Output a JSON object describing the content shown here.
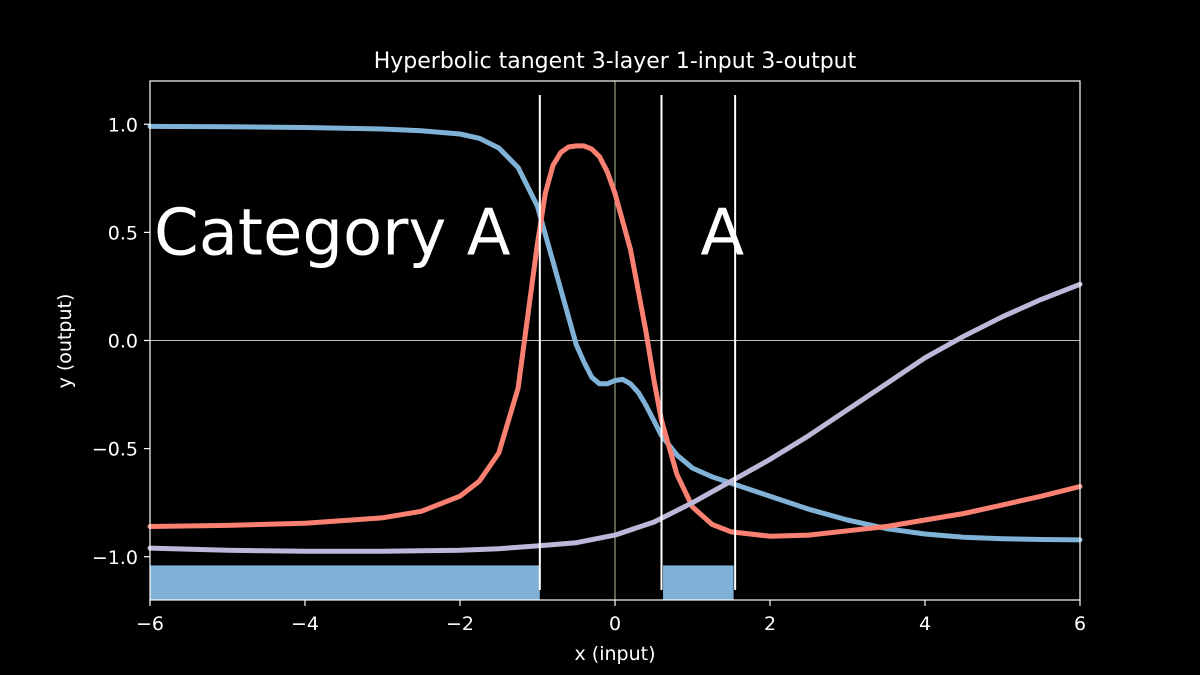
{
  "chart_data": {
    "type": "line",
    "title": "Hyperbolic tangent 3-layer 1-input 3-output",
    "xlabel": "x (input)",
    "ylabel": "y (output)",
    "xlim": [
      -6,
      6
    ],
    "ylim": [
      -1.2,
      1.2
    ],
    "xticks": [
      -6,
      -4,
      -2,
      0,
      2,
      4,
      6
    ],
    "xtick_labels": [
      "−6",
      "−4",
      "−2",
      "0",
      "2",
      "4",
      "6"
    ],
    "yticks": [
      1.0,
      0.5,
      0.0,
      -0.5,
      -1.0
    ],
    "ytick_labels": [
      "1.0",
      "0.5",
      "0.0",
      "−0.5",
      "−1.0"
    ],
    "grid": false,
    "reference_lines": {
      "horizontal_at_y": 0,
      "vertical_at_x": 0
    },
    "series": [
      {
        "color": "#7fb2d6",
        "x": [
          -6,
          -5,
          -4,
          -3,
          -2.5,
          -2,
          -1.75,
          -1.5,
          -1.25,
          -1,
          -0.75,
          -0.5,
          -0.4,
          -0.3,
          -0.2,
          -0.1,
          0,
          0.1,
          0.2,
          0.3,
          0.4,
          0.5,
          0.6,
          0.8,
          1,
          1.25,
          1.5,
          2,
          2.5,
          3,
          3.5,
          4,
          4.5,
          5,
          5.5,
          6
        ],
        "y": [
          0.99,
          0.988,
          0.985,
          0.978,
          0.97,
          0.955,
          0.935,
          0.89,
          0.8,
          0.62,
          0.3,
          -0.02,
          -0.1,
          -0.17,
          -0.2,
          -0.2,
          -0.185,
          -0.18,
          -0.2,
          -0.24,
          -0.3,
          -0.37,
          -0.44,
          -0.53,
          -0.59,
          -0.63,
          -0.66,
          -0.72,
          -0.78,
          -0.83,
          -0.87,
          -0.895,
          -0.91,
          -0.917,
          -0.92,
          -0.922
        ]
      },
      {
        "color": "#fa8072",
        "x": [
          -6,
          -5,
          -4,
          -3,
          -2.5,
          -2,
          -1.75,
          -1.5,
          -1.25,
          -1,
          -0.9,
          -0.8,
          -0.7,
          -0.6,
          -0.5,
          -0.4,
          -0.3,
          -0.2,
          -0.1,
          0,
          0.2,
          0.4,
          0.5,
          0.6,
          0.8,
          1,
          1.25,
          1.5,
          2,
          2.5,
          3,
          3.5,
          4,
          4.5,
          5,
          5.5,
          6
        ],
        "y": [
          -0.86,
          -0.855,
          -0.845,
          -0.82,
          -0.79,
          -0.72,
          -0.65,
          -0.52,
          -0.22,
          0.45,
          0.68,
          0.81,
          0.87,
          0.895,
          0.9,
          0.9,
          0.885,
          0.85,
          0.78,
          0.68,
          0.42,
          0.04,
          -0.18,
          -0.37,
          -0.62,
          -0.77,
          -0.85,
          -0.885,
          -0.905,
          -0.9,
          -0.88,
          -0.86,
          -0.83,
          -0.8,
          -0.76,
          -0.72,
          -0.675
        ]
      },
      {
        "color": "#bcb8d9",
        "x": [
          -6,
          -5,
          -4,
          -3,
          -2,
          -1.5,
          -1,
          -0.5,
          0,
          0.5,
          1,
          1.5,
          2,
          2.5,
          3,
          3.5,
          4,
          4.5,
          5,
          5.5,
          6
        ],
        "y": [
          -0.96,
          -0.97,
          -0.975,
          -0.975,
          -0.97,
          -0.963,
          -0.95,
          -0.935,
          -0.9,
          -0.84,
          -0.75,
          -0.65,
          -0.55,
          -0.44,
          -0.32,
          -0.2,
          -0.08,
          0.02,
          0.11,
          0.19,
          0.26
        ]
      }
    ],
    "vertical_boundaries": [
      -0.97,
      0.6,
      1.55
    ],
    "bands": [
      {
        "from": -6,
        "to": -0.97,
        "y_from": -1.2,
        "y_to": -1.04,
        "color": "#7fb2d6"
      },
      {
        "from": 0.62,
        "to": 1.53,
        "y_from": -1.2,
        "y_to": -1.04,
        "color": "#7fb2d6"
      }
    ],
    "annotations": [
      {
        "text": "Category A",
        "x": -6,
        "y": 0.5
      },
      {
        "text": "A",
        "x": 1.05,
        "y": 0.5
      }
    ]
  }
}
